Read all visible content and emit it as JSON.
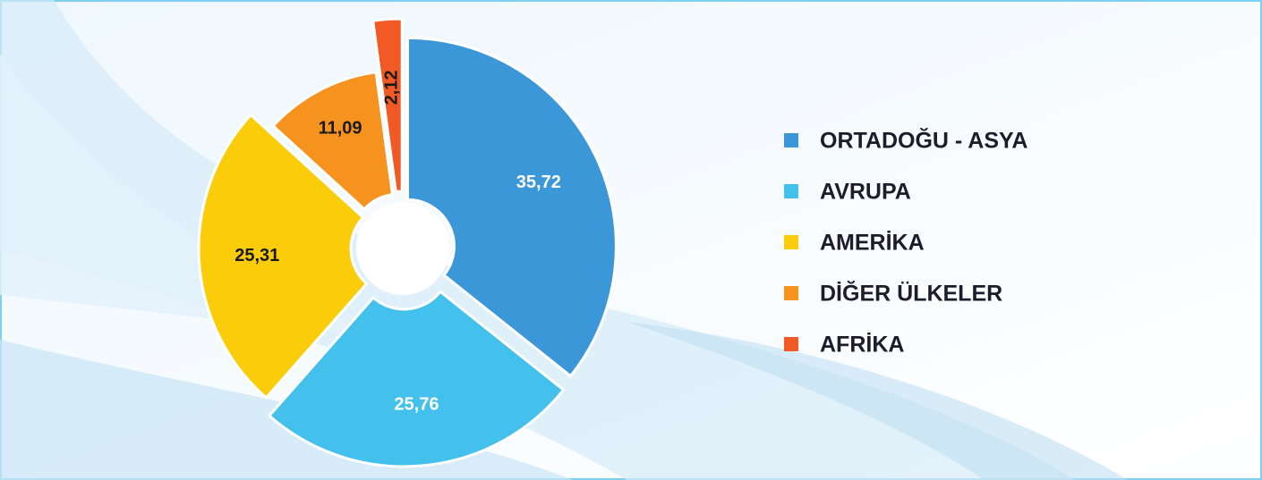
{
  "chart_data": {
    "type": "pie",
    "categories": [
      "ORTADOĞU - ASYA",
      "AVRUPA",
      "AMERİKA",
      "DİĞER ÜLKELER",
      "AFRİKA"
    ],
    "values": [
      35.72,
      25.76,
      25.31,
      11.09,
      2.12
    ],
    "value_labels": [
      "35,72",
      "25,76",
      "25,31",
      "11,09",
      "2,12"
    ],
    "colors": [
      "#3b97d8",
      "#43c0ec",
      "#fbcc0a",
      "#f6921e",
      "#f15a24"
    ],
    "legend": "right"
  }
}
